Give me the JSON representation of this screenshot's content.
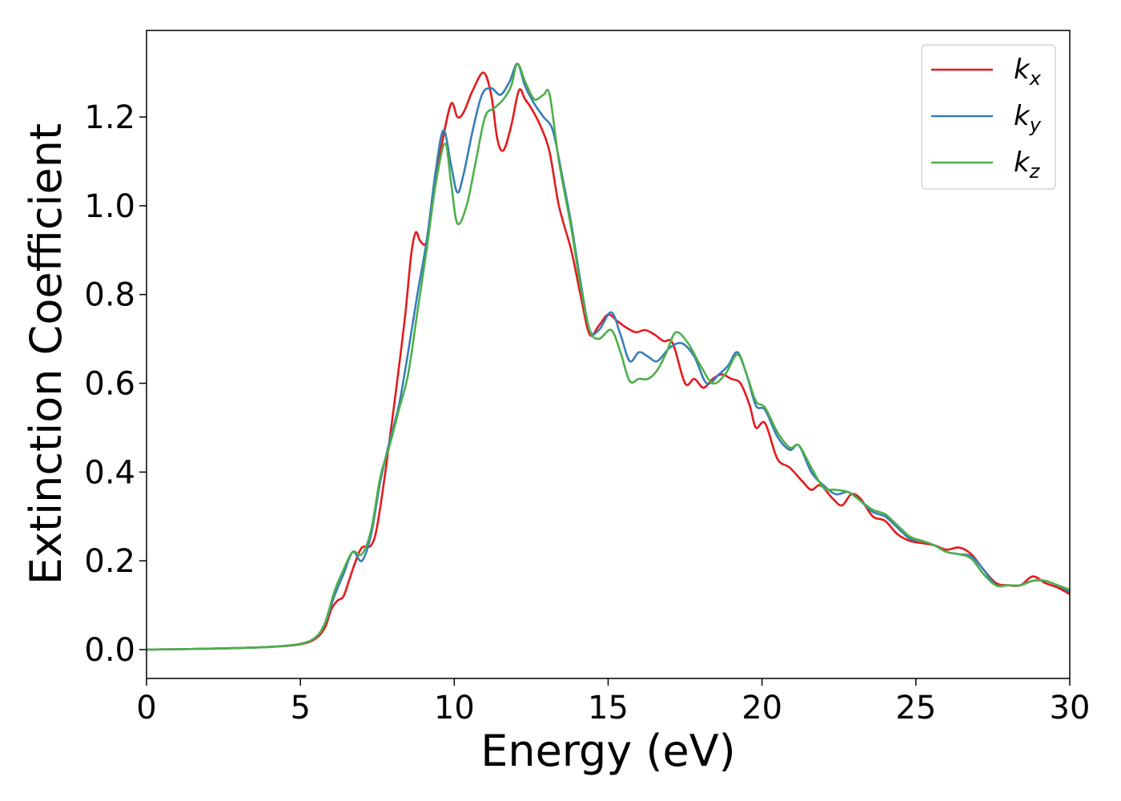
{
  "chart_data": {
    "type": "line",
    "xlabel": "Energy (eV)",
    "ylabel": "Extinction Coefficient",
    "xlim": [
      0,
      30
    ],
    "ylim": [
      -0.065,
      1.395
    ],
    "xticks": [
      0,
      5,
      10,
      15,
      20,
      25,
      30
    ],
    "yticks": [
      0.0,
      0.2,
      0.4,
      0.6,
      0.8,
      1.0,
      1.2
    ],
    "grid": false,
    "legend_position": "top-right",
    "series": [
      {
        "name": "kx",
        "label_main": "k",
        "label_sub": "x",
        "color": "#e41a1c",
        "points": [
          [
            0,
            0.0
          ],
          [
            2,
            0.002
          ],
          [
            4,
            0.006
          ],
          [
            5,
            0.012
          ],
          [
            5.5,
            0.025
          ],
          [
            5.8,
            0.05
          ],
          [
            6.0,
            0.09
          ],
          [
            6.2,
            0.11
          ],
          [
            6.4,
            0.12
          ],
          [
            6.6,
            0.16
          ],
          [
            6.8,
            0.2
          ],
          [
            7.0,
            0.23
          ],
          [
            7.3,
            0.235
          ],
          [
            7.5,
            0.28
          ],
          [
            7.8,
            0.42
          ],
          [
            8.1,
            0.58
          ],
          [
            8.4,
            0.75
          ],
          [
            8.6,
            0.89
          ],
          [
            8.75,
            0.94
          ],
          [
            8.9,
            0.92
          ],
          [
            9.1,
            0.92
          ],
          [
            9.3,
            1.02
          ],
          [
            9.6,
            1.14
          ],
          [
            9.9,
            1.23
          ],
          [
            10.1,
            1.2
          ],
          [
            10.3,
            1.21
          ],
          [
            10.6,
            1.26
          ],
          [
            10.95,
            1.3
          ],
          [
            11.2,
            1.25
          ],
          [
            11.4,
            1.15
          ],
          [
            11.6,
            1.125
          ],
          [
            11.85,
            1.18
          ],
          [
            12.1,
            1.26
          ],
          [
            12.3,
            1.24
          ],
          [
            12.5,
            1.22
          ],
          [
            12.8,
            1.18
          ],
          [
            13.1,
            1.12
          ],
          [
            13.4,
            1.0
          ],
          [
            13.8,
            0.9
          ],
          [
            14.1,
            0.8
          ],
          [
            14.4,
            0.71
          ],
          [
            14.7,
            0.73
          ],
          [
            15.0,
            0.755
          ],
          [
            15.3,
            0.74
          ],
          [
            15.6,
            0.725
          ],
          [
            15.9,
            0.715
          ],
          [
            16.2,
            0.72
          ],
          [
            16.5,
            0.71
          ],
          [
            16.8,
            0.695
          ],
          [
            17.1,
            0.69
          ],
          [
            17.5,
            0.6
          ],
          [
            17.8,
            0.61
          ],
          [
            18.1,
            0.59
          ],
          [
            18.4,
            0.61
          ],
          [
            18.7,
            0.62
          ],
          [
            19.0,
            0.61
          ],
          [
            19.3,
            0.6
          ],
          [
            19.6,
            0.55
          ],
          [
            19.8,
            0.5
          ],
          [
            20.1,
            0.51
          ],
          [
            20.5,
            0.43
          ],
          [
            20.9,
            0.41
          ],
          [
            21.3,
            0.38
          ],
          [
            21.6,
            0.36
          ],
          [
            21.9,
            0.37
          ],
          [
            22.3,
            0.34
          ],
          [
            22.6,
            0.325
          ],
          [
            22.9,
            0.35
          ],
          [
            23.2,
            0.34
          ],
          [
            23.6,
            0.3
          ],
          [
            24.0,
            0.29
          ],
          [
            24.4,
            0.26
          ],
          [
            24.8,
            0.245
          ],
          [
            25.2,
            0.24
          ],
          [
            25.6,
            0.235
          ],
          [
            26.0,
            0.225
          ],
          [
            26.4,
            0.23
          ],
          [
            26.8,
            0.215
          ],
          [
            27.2,
            0.18
          ],
          [
            27.6,
            0.15
          ],
          [
            28.0,
            0.145
          ],
          [
            28.4,
            0.145
          ],
          [
            28.8,
            0.165
          ],
          [
            29.2,
            0.15
          ],
          [
            29.6,
            0.14
          ],
          [
            30,
            0.125
          ]
        ]
      },
      {
        "name": "ky",
        "label_main": "k",
        "label_sub": "y",
        "color": "#377eb8",
        "points": [
          [
            0,
            0.0
          ],
          [
            2,
            0.002
          ],
          [
            4,
            0.006
          ],
          [
            5,
            0.013
          ],
          [
            5.5,
            0.028
          ],
          [
            5.8,
            0.06
          ],
          [
            6.1,
            0.12
          ],
          [
            6.4,
            0.17
          ],
          [
            6.7,
            0.22
          ],
          [
            7.0,
            0.2
          ],
          [
            7.3,
            0.26
          ],
          [
            7.6,
            0.38
          ],
          [
            7.9,
            0.47
          ],
          [
            8.2,
            0.55
          ],
          [
            8.5,
            0.67
          ],
          [
            8.8,
            0.8
          ],
          [
            9.1,
            0.92
          ],
          [
            9.4,
            1.08
          ],
          [
            9.65,
            1.17
          ],
          [
            9.9,
            1.09
          ],
          [
            10.1,
            1.03
          ],
          [
            10.3,
            1.07
          ],
          [
            10.6,
            1.17
          ],
          [
            10.9,
            1.25
          ],
          [
            11.2,
            1.265
          ],
          [
            11.5,
            1.25
          ],
          [
            11.8,
            1.28
          ],
          [
            12.05,
            1.32
          ],
          [
            12.3,
            1.27
          ],
          [
            12.6,
            1.23
          ],
          [
            12.9,
            1.2
          ],
          [
            13.2,
            1.17
          ],
          [
            13.5,
            1.07
          ],
          [
            13.8,
            0.96
          ],
          [
            14.1,
            0.83
          ],
          [
            14.4,
            0.72
          ],
          [
            14.7,
            0.72
          ],
          [
            15.1,
            0.76
          ],
          [
            15.4,
            0.71
          ],
          [
            15.7,
            0.65
          ],
          [
            16.0,
            0.67
          ],
          [
            16.3,
            0.66
          ],
          [
            16.6,
            0.65
          ],
          [
            17.0,
            0.68
          ],
          [
            17.4,
            0.69
          ],
          [
            17.8,
            0.66
          ],
          [
            18.2,
            0.6
          ],
          [
            18.6,
            0.62
          ],
          [
            18.9,
            0.64
          ],
          [
            19.2,
            0.67
          ],
          [
            19.5,
            0.62
          ],
          [
            19.8,
            0.55
          ],
          [
            20.1,
            0.54
          ],
          [
            20.5,
            0.48
          ],
          [
            20.9,
            0.45
          ],
          [
            21.2,
            0.46
          ],
          [
            21.6,
            0.4
          ],
          [
            22.0,
            0.37
          ],
          [
            22.4,
            0.35
          ],
          [
            22.8,
            0.355
          ],
          [
            23.2,
            0.335
          ],
          [
            23.6,
            0.31
          ],
          [
            24.0,
            0.3
          ],
          [
            24.4,
            0.275
          ],
          [
            24.8,
            0.25
          ],
          [
            25.2,
            0.245
          ],
          [
            25.6,
            0.235
          ],
          [
            26.0,
            0.22
          ],
          [
            26.4,
            0.215
          ],
          [
            26.8,
            0.21
          ],
          [
            27.2,
            0.18
          ],
          [
            27.6,
            0.145
          ],
          [
            28.0,
            0.145
          ],
          [
            28.4,
            0.145
          ],
          [
            28.8,
            0.155
          ],
          [
            29.2,
            0.155
          ],
          [
            29.6,
            0.145
          ],
          [
            30,
            0.13
          ]
        ]
      },
      {
        "name": "kz",
        "label_main": "k",
        "label_sub": "z",
        "color": "#4daf4a",
        "points": [
          [
            0,
            0.0
          ],
          [
            2,
            0.002
          ],
          [
            4,
            0.006
          ],
          [
            5,
            0.013
          ],
          [
            5.5,
            0.028
          ],
          [
            5.8,
            0.06
          ],
          [
            6.1,
            0.13
          ],
          [
            6.4,
            0.18
          ],
          [
            6.7,
            0.22
          ],
          [
            7.0,
            0.215
          ],
          [
            7.3,
            0.27
          ],
          [
            7.6,
            0.39
          ],
          [
            7.9,
            0.46
          ],
          [
            8.2,
            0.54
          ],
          [
            8.5,
            0.62
          ],
          [
            8.8,
            0.76
          ],
          [
            9.1,
            0.9
          ],
          [
            9.4,
            1.05
          ],
          [
            9.7,
            1.14
          ],
          [
            9.9,
            1.05
          ],
          [
            10.1,
            0.96
          ],
          [
            10.4,
            1.0
          ],
          [
            10.7,
            1.1
          ],
          [
            11.0,
            1.2
          ],
          [
            11.3,
            1.22
          ],
          [
            11.6,
            1.24
          ],
          [
            11.85,
            1.27
          ],
          [
            12.05,
            1.32
          ],
          [
            12.3,
            1.28
          ],
          [
            12.6,
            1.24
          ],
          [
            12.9,
            1.25
          ],
          [
            13.1,
            1.25
          ],
          [
            13.4,
            1.1
          ],
          [
            13.8,
            0.95
          ],
          [
            14.1,
            0.82
          ],
          [
            14.4,
            0.72
          ],
          [
            14.7,
            0.7
          ],
          [
            15.1,
            0.72
          ],
          [
            15.4,
            0.67
          ],
          [
            15.7,
            0.605
          ],
          [
            16.0,
            0.61
          ],
          [
            16.3,
            0.61
          ],
          [
            16.6,
            0.63
          ],
          [
            16.9,
            0.67
          ],
          [
            17.2,
            0.715
          ],
          [
            17.6,
            0.69
          ],
          [
            18.0,
            0.64
          ],
          [
            18.4,
            0.6
          ],
          [
            18.8,
            0.62
          ],
          [
            19.2,
            0.665
          ],
          [
            19.5,
            0.62
          ],
          [
            19.8,
            0.56
          ],
          [
            20.1,
            0.545
          ],
          [
            20.5,
            0.49
          ],
          [
            20.9,
            0.455
          ],
          [
            21.2,
            0.46
          ],
          [
            21.6,
            0.41
          ],
          [
            22.0,
            0.365
          ],
          [
            22.4,
            0.36
          ],
          [
            22.8,
            0.355
          ],
          [
            23.2,
            0.335
          ],
          [
            23.6,
            0.315
          ],
          [
            24.0,
            0.305
          ],
          [
            24.4,
            0.28
          ],
          [
            24.8,
            0.255
          ],
          [
            25.2,
            0.245
          ],
          [
            25.6,
            0.235
          ],
          [
            26.0,
            0.22
          ],
          [
            26.4,
            0.215
          ],
          [
            26.8,
            0.205
          ],
          [
            27.2,
            0.17
          ],
          [
            27.6,
            0.145
          ],
          [
            28.0,
            0.145
          ],
          [
            28.4,
            0.145
          ],
          [
            28.8,
            0.155
          ],
          [
            29.2,
            0.155
          ],
          [
            29.6,
            0.145
          ],
          [
            30,
            0.135
          ]
        ]
      }
    ]
  }
}
